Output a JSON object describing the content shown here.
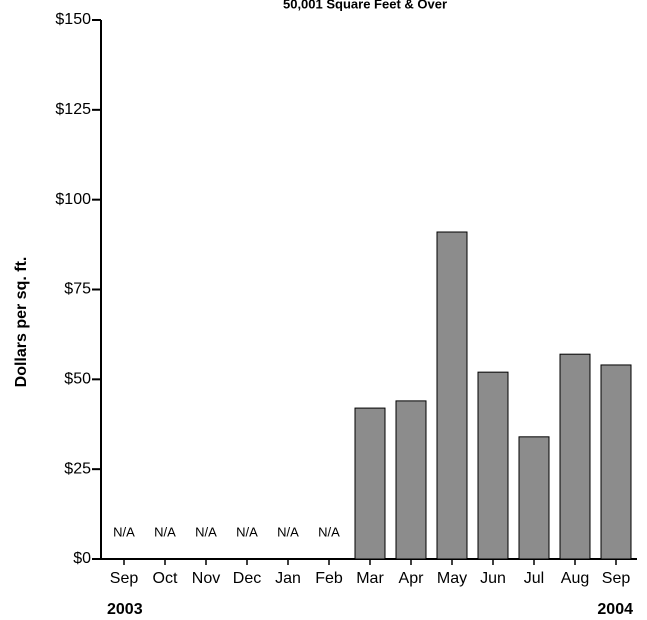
{
  "chart_data": {
    "type": "bar",
    "title": "50,001 Square Feet & Over",
    "y_label": "Dollars per sq. ft.",
    "categories": [
      "Sep",
      "Oct",
      "Nov",
      "Dec",
      "Jan",
      "Feb",
      "Mar",
      "Apr",
      "May",
      "Jun",
      "Jul",
      "Aug",
      "Sep"
    ],
    "year_labels": [
      "2003",
      "2004"
    ],
    "values": [
      null,
      null,
      null,
      null,
      null,
      null,
      42,
      44,
      91,
      52,
      34,
      57,
      54
    ],
    "value_labels": [
      "N/A",
      "N/A",
      "N/A",
      "N/A",
      "N/A",
      "N/A",
      null,
      null,
      null,
      null,
      null,
      null,
      null
    ],
    "color": "#8c8c8c",
    "ylim": [
      0,
      150
    ],
    "yticks": [
      {
        "value": 0,
        "label": "$0"
      },
      {
        "value": 25,
        "label": "$25"
      },
      {
        "value": 50,
        "label": "$50"
      },
      {
        "value": 75,
        "label": "$75"
      },
      {
        "value": 100,
        "label": "$100"
      },
      {
        "value": 125,
        "label": "$125"
      },
      {
        "value": 150,
        "label": "$150"
      }
    ],
    "grid": false
  }
}
